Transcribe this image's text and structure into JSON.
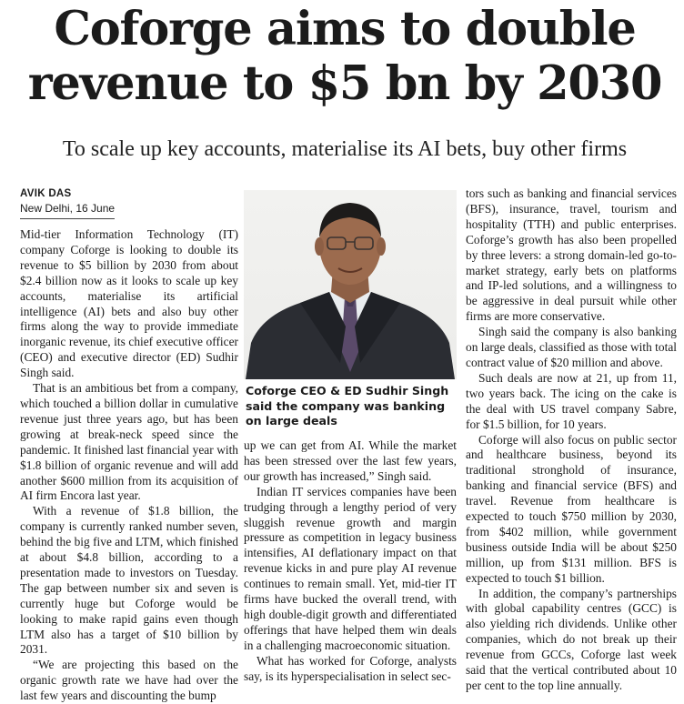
{
  "article": {
    "headline": "Coforge aims to double revenue to $5 bn by 2030",
    "deck": "To scale up key accounts, materialise its AI bets, buy other firms",
    "author": "AVIK DAS",
    "dateline": "New Delhi, 16 June",
    "photo_icon": "portrait-photo",
    "caption": "Coforge CEO & ED Sudhir Singh said the company was banking on large deals",
    "col1": [
      "Mid-tier Information Technology (IT) company Coforge is looking to double its revenue to $5 billion by 2030 from about $2.4 billion now as it looks to scale up key accounts, materialise its artificial intelligence (AI) bets and also buy other firms along the way to provide immediate inorganic revenue, its chief executive officer (CEO) and executive director (ED) Sudhir Singh said.",
      "That is an ambitious bet from a company, which touched a billion dollar in cumulative revenue just three years ago, but has been growing at break-neck speed since the pandemic. It finished last financial year with $1.8 billion of organic revenue and will add another $600 million from its acquisition of AI firm Encora last year.",
      "With a revenue of $1.8 billion, the company is currently ranked number seven, behind the big five and LTM, which finished at about $4.8 billion, according to a presentation made to investors on Tuesday. The gap between number six and seven is currently huge but Coforge would be looking to make rapid gains even though LTM also has a target of $10 billion by 2031.",
      "“We are projecting this based on the organic growth rate we have had over the last few years and discounting the bump"
    ],
    "col2": [
      "up we can get from AI. While the market has been stressed over the last few years, our growth has increased,” Singh said.",
      "Indian IT services companies have been trudging through a lengthy period of very sluggish revenue growth and margin pressure as competition in legacy business intensifies, AI deflationary impact on that revenue kicks in and pure play AI revenue continues to remain small. Yet, mid-tier IT firms have bucked the overall trend, with high double-digit growth and differentiated offerings that have helped them win deals in a challenging macroeconomic situation.",
      "What has worked for Coforge, analysts say, is its hyperspecialisation in select sec-"
    ],
    "col3": [
      "tors such as banking and financial services (BFS), insurance, travel, tourism and hospitality (TTH) and public enterprises. Coforge’s growth has also been propelled by three levers: a strong domain-led go-to-market strategy, early bets on platforms and IP-led solutions, and a willingness to be aggressive in deal pursuit while other firms are more conservative.",
      "Singh said the company is also banking on large deals, classified as those with total contract value of $20 million and above.",
      "Such deals are now at 21, up from 11, two years back. The icing on the cake is the deal with US travel company Sabre, for $1.5 billion, for 10 years.",
      "Coforge will also focus on public sector and healthcare business, beyond its traditional stronghold of insurance, banking and financial service (BFS) and travel. Revenue from healthcare is expected to touch $750 million by 2030, from $402 million, while government business outside India will be about $250 million, up from $131 million. BFS is expected to touch $1 billion.",
      "In addition, the company’s partnerships with global capability centres (GCC) is also yielding rich dividends. Unlike other companies, which do not break up their revenue from GCCs, Coforge last week said that the vertical contributed about 10 per cent to the top line annually."
    ]
  }
}
